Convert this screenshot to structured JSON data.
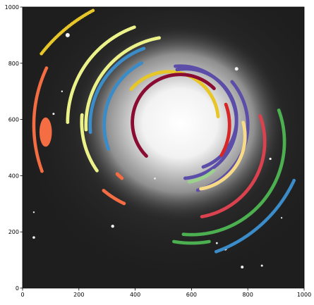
{
  "chart_data": {
    "type": "scatter",
    "title": "",
    "xlabel": "",
    "ylabel": "",
    "xlim": [
      0,
      1000
    ],
    "ylim": [
      0,
      1000
    ],
    "xticks": [
      "0",
      "200",
      "400",
      "600",
      "800",
      "1000"
    ],
    "yticks": [
      "0",
      "200",
      "400",
      "600",
      "800",
      "1000"
    ],
    "grid": false,
    "legend": "none",
    "background": "grayscale galaxy image with bright central glow and scattered stars",
    "series": [
      {
        "color": "#e6c629",
        "shape": "arc",
        "cx": 520,
        "cy": 480,
        "r": 575,
        "a0": 118,
        "a1": 142
      },
      {
        "color": "#e6c629",
        "shape": "arc",
        "cx": 520,
        "cy": 595,
        "r": 175,
        "a0": 5,
        "a1": 140
      },
      {
        "color": "#ecf28a",
        "shape": "arc",
        "cx": 540,
        "cy": 580,
        "r": 315,
        "a0": 100,
        "a1": 183
      },
      {
        "color": "#ecf28a",
        "shape": "arc",
        "cx": 520,
        "cy": 590,
        "r": 360,
        "a0": 110,
        "a1": 180
      },
      {
        "color": "#ecf28a",
        "shape": "arc",
        "cx": 510,
        "cy": 590,
        "r": 300,
        "a0": 175,
        "a1": 215
      },
      {
        "color": "#3b8cc8",
        "shape": "arc",
        "cx": 530,
        "cy": 580,
        "r": 290,
        "a0": 110,
        "a1": 185
      },
      {
        "color": "#3b8cc8",
        "shape": "arc",
        "cx": 540,
        "cy": 580,
        "r": 250,
        "a0": 118,
        "a1": 200
      },
      {
        "color": "#3b8cc8",
        "shape": "arc",
        "cx": 520,
        "cy": 590,
        "r": 490,
        "a0": 290,
        "a1": 335
      },
      {
        "color": "#5c4ea8",
        "shape": "arc",
        "cx": 580,
        "cy": 600,
        "r": 180,
        "a0": -70,
        "a1": 100
      },
      {
        "color": "#5c4ea8",
        "shape": "arc",
        "cx": 560,
        "cy": 590,
        "r": 200,
        "a0": -85,
        "a1": 95
      },
      {
        "color": "#5c4ea8",
        "shape": "arc",
        "cx": 560,
        "cy": 580,
        "r": 240,
        "a0": -75,
        "a1": 40
      },
      {
        "color": "#8a0d33",
        "shape": "arc",
        "cx": 560,
        "cy": 590,
        "r": 170,
        "a0": 45,
        "a1": 225
      },
      {
        "color": "#d62728",
        "shape": "arc",
        "cx": 520,
        "cy": 580,
        "r": 215,
        "a0": -30,
        "a1": 20
      },
      {
        "color": "#d9424e",
        "shape": "arc",
        "cx": 590,
        "cy": 520,
        "r": 270,
        "a0": -80,
        "a1": 20
      },
      {
        "color": "#f6da86",
        "shape": "arc",
        "cx": 600,
        "cy": 540,
        "r": 190,
        "a0": -80,
        "a1": 15
      },
      {
        "color": "#9bd18c",
        "shape": "arc",
        "cx": 560,
        "cy": 560,
        "r": 185,
        "a0": -80,
        "a1": -50
      },
      {
        "color": "#4caf50",
        "shape": "arc",
        "cx": 600,
        "cy": 520,
        "r": 330,
        "a0": -95,
        "a1": 20
      },
      {
        "color": "#4caf50",
        "shape": "arc",
        "cx": 600,
        "cy": 520,
        "r": 360,
        "a0": -100,
        "a1": -80
      },
      {
        "color": "#f46d43",
        "shape": "blob",
        "cx": 82,
        "cy": 555,
        "rx": 22,
        "ry": 52
      },
      {
        "color": "#f46d43",
        "shape": "arc",
        "cx": 520,
        "cy": 580,
        "r": 480,
        "a0": 155,
        "a1": 200
      },
      {
        "color": "#f46d43",
        "shape": "arc",
        "cx": 500,
        "cy": 600,
        "r": 330,
        "a0": 230,
        "a1": 245
      },
      {
        "color": "#f46d43",
        "shape": "arc",
        "cx": 520,
        "cy": 590,
        "r": 260,
        "a0": 225,
        "a1": 230
      }
    ]
  }
}
